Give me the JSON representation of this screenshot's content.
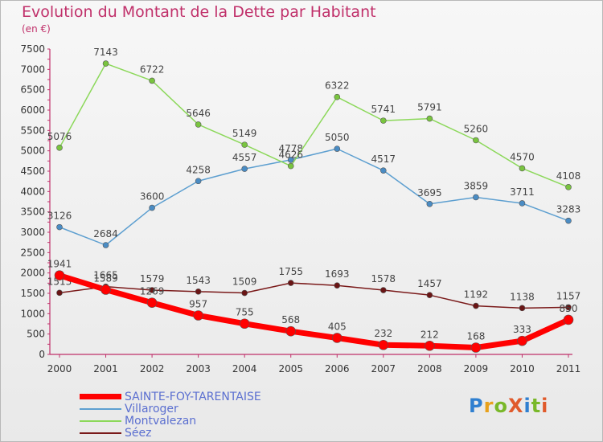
{
  "title": "Evolution du Montant de la Dette par Habitant",
  "subtitle": "(en €)",
  "logo": {
    "text": "ProXiti",
    "colors": [
      "#2f7fd0",
      "#e8a11c",
      "#79b829",
      "#e05a2b",
      "#2f7fd0",
      "#79b829",
      "#e05a2b"
    ]
  },
  "chart_data": {
    "type": "line",
    "x": [
      "2000",
      "2001",
      "2002",
      "2003",
      "2004",
      "2005",
      "2006",
      "2007",
      "2008",
      "2009",
      "2010",
      "2011"
    ],
    "ylim": [
      0,
      7500
    ],
    "yticks": [
      0,
      500,
      1000,
      1500,
      2000,
      2500,
      3000,
      3500,
      4000,
      4500,
      5000,
      5500,
      6000,
      6500,
      7000,
      7500
    ],
    "grid": false,
    "legend": "bottom-left",
    "series": [
      {
        "name": "Villaroger",
        "color": "#5d9fd0",
        "marker": "#4a8cc4",
        "width": 1.5,
        "r": 3.5,
        "values": [
          3126,
          2684,
          3600,
          4258,
          4557,
          4778,
          5050,
          4517,
          3695,
          3859,
          3711,
          3283
        ]
      },
      {
        "name": "Montvalezan",
        "color": "#8cd85a",
        "marker": "#79c43f",
        "width": 1.5,
        "r": 3.5,
        "values": [
          5076,
          7143,
          6722,
          5646,
          5149,
          4626,
          6322,
          5741,
          5791,
          5260,
          4570,
          4108
        ]
      },
      {
        "name": "Séez",
        "color": "#7a1a1a",
        "marker": "#6a1515",
        "width": 1.5,
        "r": 3.5,
        "values": [
          1513,
          1665,
          1579,
          1543,
          1509,
          1755,
          1693,
          1578,
          1457,
          1192,
          1138,
          1157
        ]
      },
      {
        "name": "SAINTE-FOY-TARENTAISE",
        "color": "#ff0000",
        "marker": "#ff0000",
        "width": 7,
        "r": 6,
        "values": [
          1941,
          1589,
          1269,
          957,
          755,
          568,
          405,
          232,
          212,
          168,
          333,
          850
        ]
      }
    ],
    "legend_order": [
      "SAINTE-FOY-TARENTAISE",
      "Villaroger",
      "Montvalezan",
      "Séez"
    ]
  }
}
